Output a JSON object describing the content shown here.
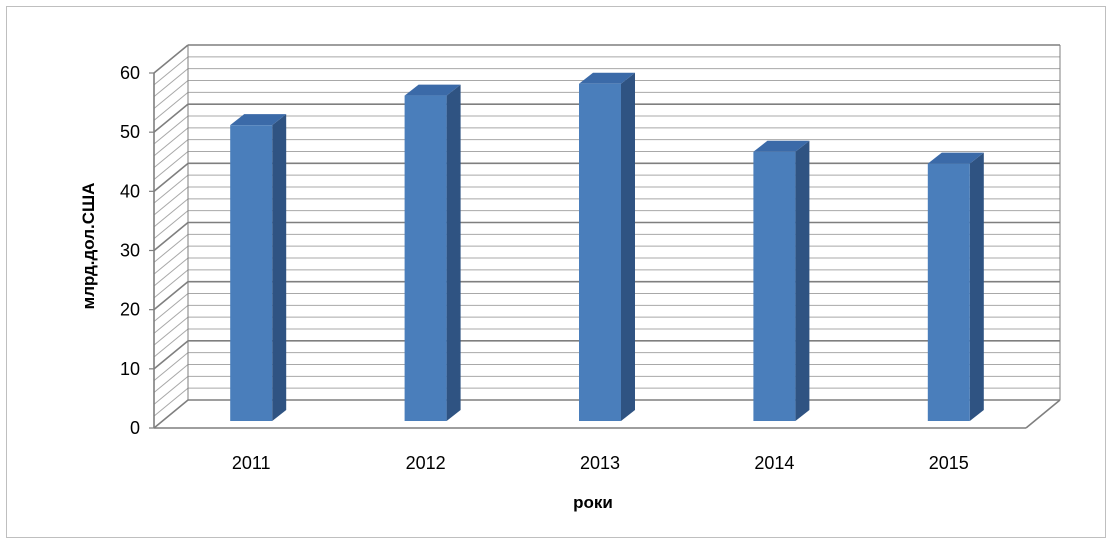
{
  "chart_data": {
    "type": "bar",
    "style": "3d-column",
    "categories": [
      "2011",
      "2012",
      "2013",
      "2014",
      "2015"
    ],
    "values": [
      50,
      55,
      57,
      45.5,
      43.5
    ],
    "title": "",
    "xlabel": "роки",
    "ylabel": "млрд.дол.США",
    "ylim": [
      0,
      60
    ],
    "yticks": [
      0,
      10,
      20,
      30,
      40,
      50,
      60
    ],
    "minor_grid_step": 2,
    "grid": true,
    "legend": "none",
    "colors": {
      "bar_front": "#4a7ebb",
      "bar_side": "#2f5382",
      "bar_top": "#3b6aa8",
      "grid_major": "#7f7f7f",
      "grid_minor": "#a8a8a8",
      "axis": "#7f7f7f",
      "frame": "#bfbfbf"
    }
  }
}
